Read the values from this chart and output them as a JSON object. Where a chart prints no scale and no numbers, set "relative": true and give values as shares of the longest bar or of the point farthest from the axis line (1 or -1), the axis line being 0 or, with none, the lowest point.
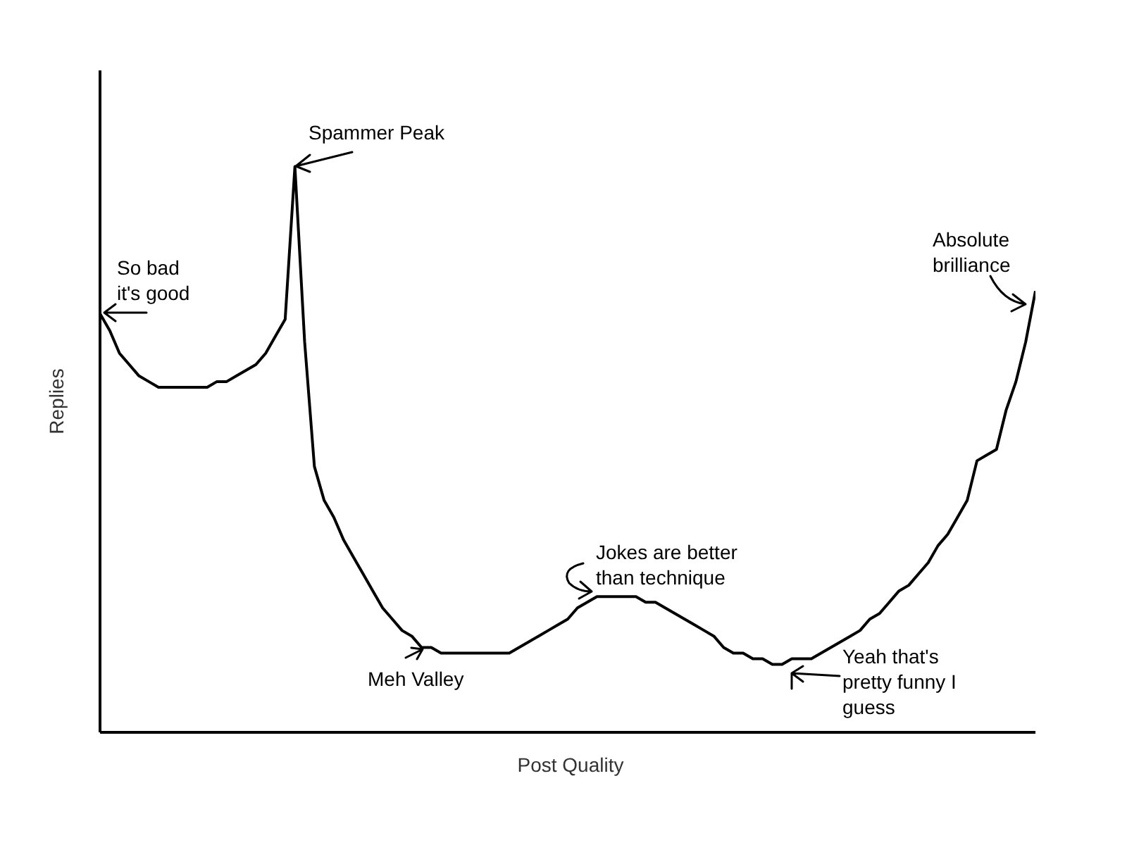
{
  "chart_data": {
    "type": "line",
    "xlabel": "Post Quality",
    "ylabel": "Replies",
    "relative": true,
    "color": "#000000",
    "categories": [
      null,
      null,
      null,
      null,
      null,
      null,
      null,
      null,
      null,
      null,
      null,
      null,
      null,
      null,
      null,
      null,
      null,
      null,
      null,
      null,
      null,
      null,
      null,
      null,
      null,
      null,
      null,
      null,
      null,
      null,
      null,
      null,
      null,
      null,
      null,
      null,
      null,
      null,
      null,
      null,
      null,
      null,
      null,
      null,
      null,
      null,
      null,
      null,
      null,
      null,
      null,
      null,
      null,
      null,
      null,
      null,
      null,
      null,
      null,
      null,
      null,
      null,
      null,
      null,
      null,
      null,
      null,
      null,
      null,
      null,
      null,
      null,
      null,
      null,
      null,
      null,
      null,
      null,
      null,
      null,
      null,
      null,
      null,
      null,
      null,
      null,
      null,
      null,
      null,
      null,
      null,
      null,
      null,
      null,
      null,
      null,
      null
    ],
    "values": [
      0.74,
      0.71,
      0.67,
      0.65,
      0.63,
      0.62,
      0.61,
      0.61,
      0.61,
      0.61,
      0.61,
      0.61,
      0.62,
      0.62,
      0.63,
      0.64,
      0.65,
      0.67,
      0.7,
      0.73,
      1.0,
      0.69,
      0.47,
      0.41,
      0.38,
      0.34,
      0.31,
      0.28,
      0.25,
      0.22,
      0.2,
      0.18,
      0.17,
      0.15,
      0.15,
      0.14,
      0.14,
      0.14,
      0.14,
      0.14,
      0.14,
      0.14,
      0.14,
      0.15,
      0.16,
      0.17,
      0.18,
      0.19,
      0.2,
      0.22,
      0.23,
      0.24,
      0.24,
      0.24,
      0.24,
      0.24,
      0.23,
      0.23,
      0.22,
      0.21,
      0.2,
      0.19,
      0.18,
      0.17,
      0.15,
      0.14,
      0.14,
      0.13,
      0.13,
      0.12,
      0.12,
      0.13,
      0.13,
      0.13,
      0.14,
      0.15,
      0.16,
      0.17,
      0.18,
      0.2,
      0.21,
      0.23,
      0.25,
      0.26,
      0.28,
      0.3,
      0.33,
      0.35,
      0.38,
      0.41,
      0.48,
      0.49,
      0.5,
      0.57,
      0.62,
      0.69,
      0.78
    ],
    "annotations": [
      "So bad it's good",
      "Spammer Peak",
      "Absolute brilliance",
      "Jokes are better than technique",
      "Meh Valley",
      "Yeah that's pretty funny I guess"
    ]
  }
}
